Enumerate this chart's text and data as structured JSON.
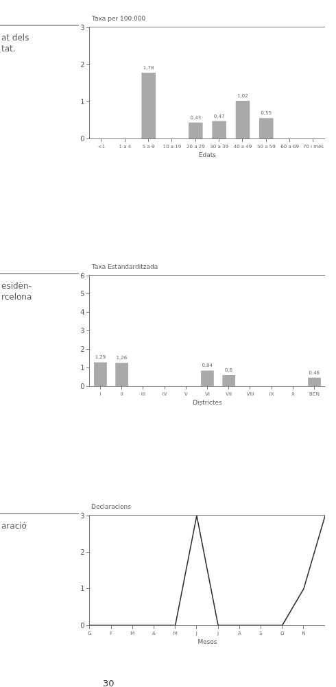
{
  "chart_data": [
    {
      "type": "bar",
      "ylabel": "Taxa per 100.000",
      "xlabel": "Edats",
      "categories": [
        "<1",
        "1 a 4",
        "5 a 9",
        "10 a 19",
        "20 a 29",
        "30 a 39",
        "40 a 49",
        "50 a 59",
        "60 a 69",
        "70 i més"
      ],
      "values": [
        0,
        0,
        1.78,
        0,
        0.43,
        0.47,
        1.02,
        0.55,
        0,
        0
      ],
      "value_labels": [
        null,
        null,
        "1,78",
        null,
        "0,43",
        "0,47",
        "1,02",
        "0,55",
        null,
        null
      ],
      "color": "#a9a9a9",
      "ylim": [
        0,
        3
      ],
      "yticks": [
        0,
        1,
        2,
        3
      ],
      "annotations": [
        "at dels\ntat."
      ]
    },
    {
      "type": "bar",
      "ylabel": "Taxa Estandarditzada",
      "xlabel": "Districtes",
      "categories": [
        "I",
        "II",
        "III",
        "IV",
        "V",
        "VI",
        "VII",
        "VIII",
        "IX",
        "X",
        "BCN"
      ],
      "values": [
        1.29,
        1.26,
        0,
        0,
        0,
        0.84,
        0.6,
        0,
        0,
        0,
        0.46
      ],
      "value_labels": [
        "1,29",
        "1,26",
        null,
        null,
        null,
        "0,84",
        "0,6",
        null,
        null,
        null,
        "0,46"
      ],
      "color": "#a9a9a9",
      "ylim": [
        0,
        6
      ],
      "yticks": [
        0,
        1,
        2,
        3,
        4,
        5,
        6
      ],
      "annotations": [
        "esidèn-\nrcelona"
      ]
    },
    {
      "type": "line",
      "ylabel": "Declaracions",
      "xlabel": "Mesos",
      "categories": [
        "G",
        "F",
        "M",
        "A",
        "M",
        "J",
        "J",
        "A",
        "S",
        "O",
        "N",
        null
      ],
      "values": [
        0,
        0,
        0,
        0,
        0,
        3,
        0,
        0,
        0,
        0,
        1,
        3
      ],
      "color": "#333333",
      "ylim": [
        0,
        3
      ],
      "yticks": [
        0,
        1,
        2,
        3
      ],
      "marker": "none",
      "line_style": "solid",
      "annotations": [
        "aració",
        "30"
      ]
    }
  ]
}
